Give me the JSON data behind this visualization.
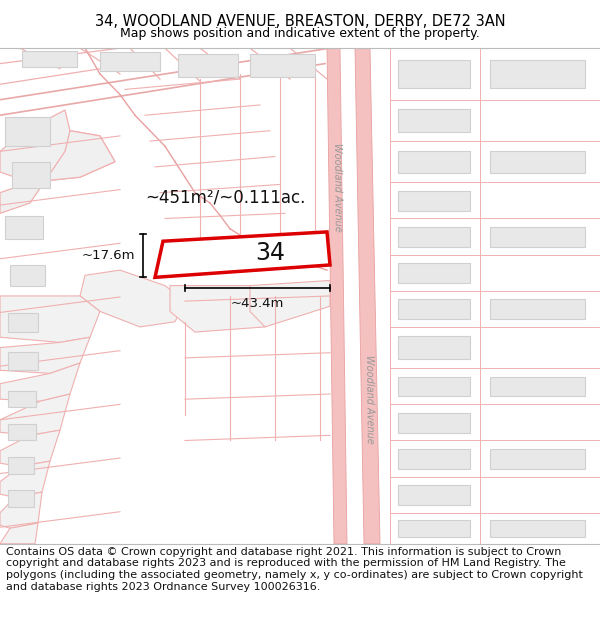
{
  "title_line1": "34, WOODLAND AVENUE, BREASTON, DERBY, DE72 3AN",
  "title_line2": "Map shows position and indicative extent of the property.",
  "footer_text": "Contains OS data © Crown copyright and database right 2021. This information is subject to Crown copyright and database rights 2023 and is reproduced with the permission of HM Land Registry. The polygons (including the associated geometry, namely x, y co-ordinates) are subject to Crown copyright and database rights 2023 Ordnance Survey 100026316.",
  "bg_color": "#ffffff",
  "plot_outline_color": "#dd0000",
  "label_number": "34",
  "area_label": "~451m²/~0.111ac.",
  "dim_width": "~43.4m",
  "dim_height": "~17.6m",
  "street_name": "Woodland Avenue",
  "road_fill": "#f5c0c0",
  "road_line": "#e8a0a0",
  "bld_fill": "#e8e8e8",
  "bld_line": "#d0d0d0",
  "prop_line": "#f0b0b0",
  "title_fontsize": 10.5,
  "subtitle_fontsize": 9,
  "footer_fontsize": 8
}
